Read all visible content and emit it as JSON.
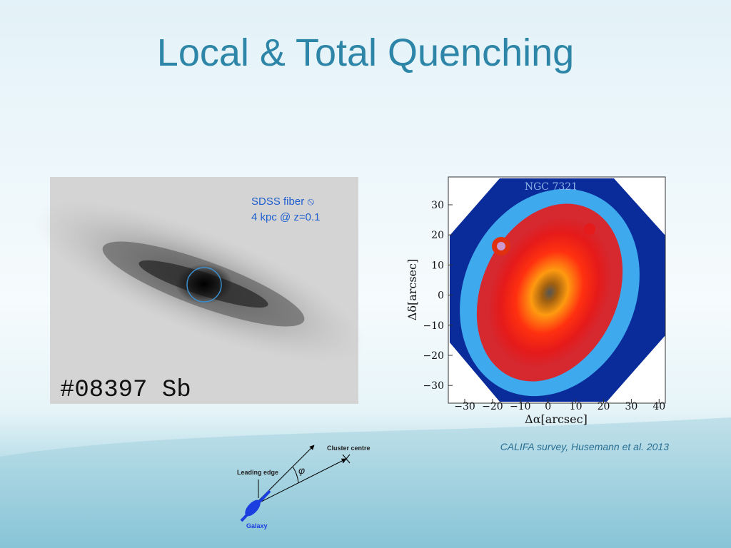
{
  "title": "Local & Total Quenching",
  "left_image": {
    "fiber_label": [
      "SDSS fiber ⦸",
      "4 kpc @ z=0.1"
    ],
    "id_label": "#08397  Sb"
  },
  "right_image": {
    "object_name": "NGC 7321",
    "x_label": "Δα[arcsec]",
    "y_label": "Δδ[arcsec]",
    "xticks": [
      "−30",
      "−20",
      "−10",
      "0",
      "10",
      "20",
      "30",
      "40"
    ],
    "yticks": [
      "30",
      "20",
      "10",
      "0",
      "−10",
      "−20",
      "−30"
    ]
  },
  "caption": "CALIFA survey, Husemann et al. 2013",
  "diagram": {
    "cluster_centre": "Cluster centre",
    "leading_edge": "Leading edge",
    "angle": "φ",
    "galaxy": "Galaxy"
  }
}
